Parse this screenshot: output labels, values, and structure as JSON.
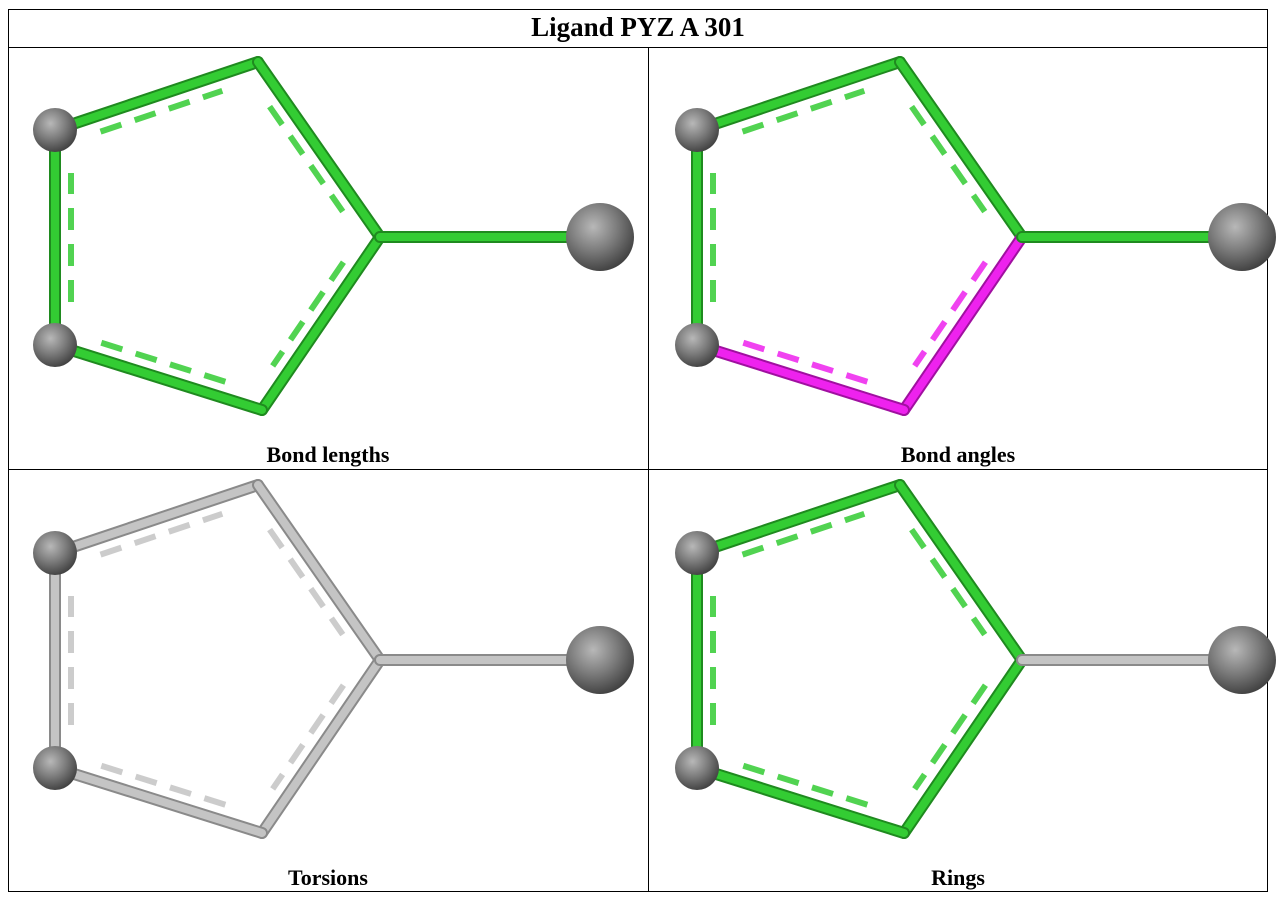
{
  "table": {
    "title": "Ligand PYZ A 301",
    "panels": [
      {
        "caption": "Bond lengths"
      },
      {
        "caption": "Bond angles"
      },
      {
        "caption": "Torsions"
      },
      {
        "caption": "Rings"
      }
    ]
  }
}
